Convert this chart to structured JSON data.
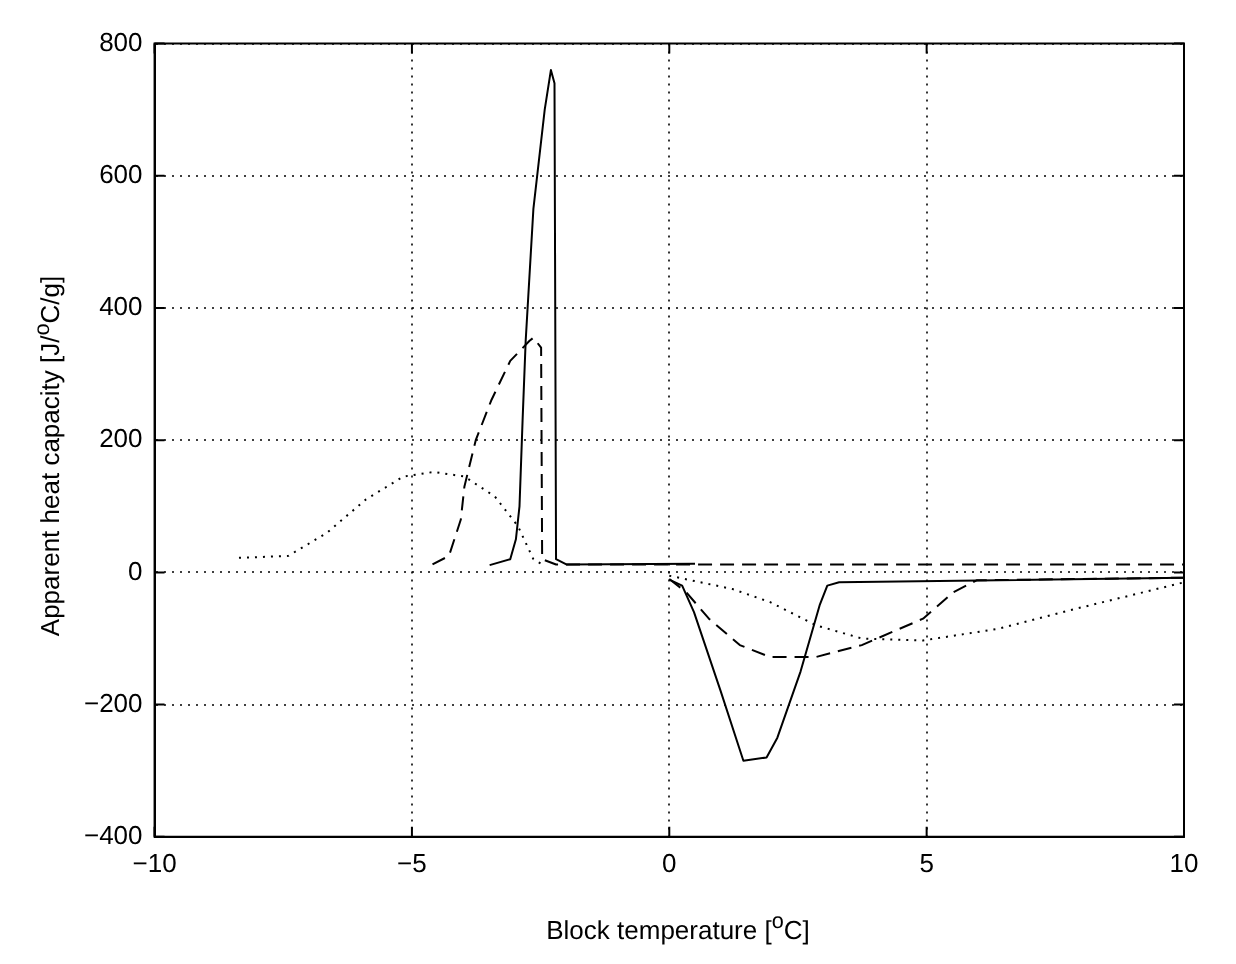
{
  "chart_data": {
    "type": "line",
    "xlabel": "Block temperature [$^{o}$C]",
    "ylabel": "Apparent heat capacity [J/$^{o}$C/g]",
    "xlim": [
      -10,
      10
    ],
    "xticks": [
      -10,
      -5,
      0,
      5,
      10
    ],
    "ylim": [
      -400,
      800
    ],
    "yticks": [
      -400,
      -200,
      0,
      200,
      400,
      600,
      800
    ],
    "grid": true,
    "series": [
      {
        "color": "#000000",
        "line_style": "solid",
        "x": [
          -3.49,
          -3.09,
          -2.98,
          -2.91,
          -2.85,
          -2.79,
          -2.64,
          -2.42,
          -2.3,
          -2.23,
          -2.2,
          -2.0,
          0.5
        ],
        "values": [
          11,
          20,
          50,
          100,
          230,
          350,
          550,
          700,
          760,
          740,
          20,
          12,
          13
        ]
      },
      {
        "color": "#000000",
        "line_style": "solid",
        "x": [
          0,
          0.25,
          0.48,
          1.0,
          1.44,
          1.89,
          2.1,
          2.55,
          2.92,
          3.07,
          3.3,
          10
        ],
        "values": [
          -11,
          -20,
          -60,
          -180,
          -285,
          -280,
          -250,
          -150,
          -50,
          -20,
          -15,
          -8
        ]
      },
      {
        "color": "#000000",
        "line_style": "dashed",
        "x": [
          -4.6,
          -4.28,
          -4.05,
          -3.98,
          -3.76,
          -3.46,
          -3.09,
          -2.72,
          -2.64,
          -2.49,
          -2.47,
          -2.2,
          10
        ],
        "values": [
          12,
          25,
          80,
          130,
          200,
          260,
          320,
          350,
          355,
          340,
          20,
          12,
          12
        ]
      },
      {
        "color": "#000000",
        "line_style": "dashed",
        "x": [
          0,
          0.33,
          0.77,
          1.37,
          1.96,
          2.85,
          3.74,
          4.93,
          5.52,
          5.97,
          10
        ],
        "values": [
          -10,
          -30,
          -70,
          -110,
          -128,
          -128,
          -110,
          -70,
          -30,
          -12,
          -8
        ]
      },
      {
        "color": "#000000",
        "line_style": "dotted",
        "x": [
          -8.36,
          -7.4,
          -6.65,
          -5.9,
          -5.17,
          -4.57,
          -3.98,
          -3.39,
          -2.94,
          -2.64,
          -2.42
        ],
        "values": [
          22,
          25,
          60,
          110,
          145,
          152,
          145,
          115,
          70,
          20,
          10
        ]
      },
      {
        "color": "#000000",
        "line_style": "dotted",
        "x": [
          0,
          1.22,
          1.96,
          2.85,
          3.74,
          4.93,
          6.41,
          7.9,
          10
        ],
        "values": [
          -5,
          -25,
          -45,
          -80,
          -100,
          -103,
          -85,
          -55,
          -15
        ]
      }
    ]
  }
}
